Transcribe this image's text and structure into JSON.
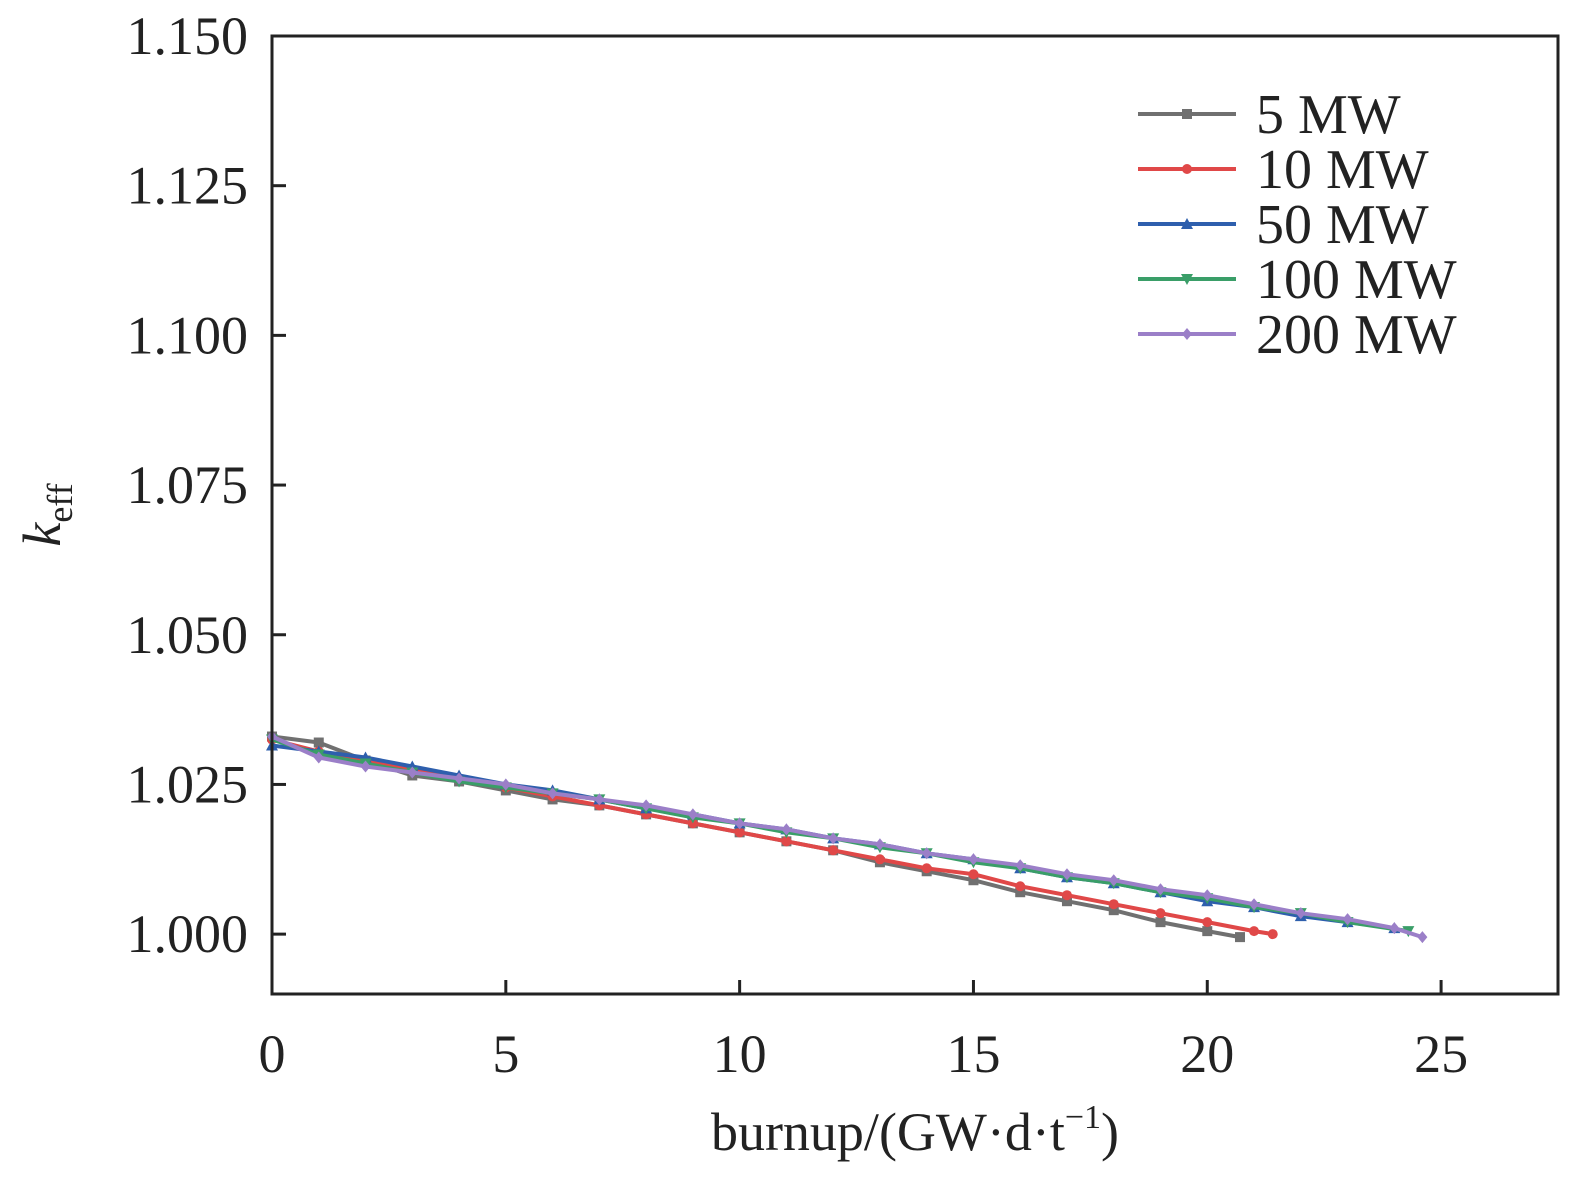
{
  "chart_data": {
    "type": "line",
    "title": "",
    "xlabel": {
      "main": "burnup/(GW·d·t",
      "sup": "−1",
      "close": ")"
    },
    "ylabel": {
      "main": "k",
      "sub": "eff"
    },
    "xlim": [
      0,
      27.5
    ],
    "ylim": [
      0.99,
      1.15
    ],
    "x_ticks": [
      0,
      5,
      10,
      15,
      20,
      25
    ],
    "x_tick_labels": [
      "0",
      "5",
      "10",
      "15",
      "20",
      "25"
    ],
    "y_ticks": [
      1.0,
      1.025,
      1.05,
      1.075,
      1.1,
      1.125,
      1.15
    ],
    "y_tick_labels": [
      "1.000",
      "1.025",
      "1.050",
      "1.075",
      "1.100",
      "1.125",
      "1.150"
    ],
    "grid": false,
    "legend_position": "top-right",
    "series": [
      {
        "name": "5 MW",
        "color": "#707070",
        "marker": "square",
        "x": [
          0,
          1,
          2,
          3,
          4,
          5,
          6,
          7,
          8,
          9,
          10,
          11,
          12,
          13,
          14,
          15,
          16,
          17,
          18,
          19,
          20,
          20.7
        ],
        "y": [
          1.033,
          1.032,
          1.029,
          1.0265,
          1.0255,
          1.024,
          1.0225,
          1.0215,
          1.02,
          1.0185,
          1.017,
          1.0155,
          1.014,
          1.012,
          1.0105,
          1.009,
          1.007,
          1.0055,
          1.004,
          1.002,
          1.0005,
          0.9995
        ]
      },
      {
        "name": "10 MW",
        "color": "#e04848",
        "marker": "circle",
        "x": [
          0,
          1,
          2,
          3,
          4,
          5,
          6,
          7,
          8,
          9,
          10,
          11,
          12,
          13,
          14,
          15,
          16,
          17,
          18,
          19,
          20,
          21,
          21.4
        ],
        "y": [
          1.0325,
          1.0305,
          1.029,
          1.0275,
          1.026,
          1.0245,
          1.023,
          1.0215,
          1.02,
          1.0185,
          1.017,
          1.0155,
          1.014,
          1.0125,
          1.011,
          1.01,
          1.008,
          1.0065,
          1.005,
          1.0035,
          1.002,
          1.0005,
          1.0
        ]
      },
      {
        "name": "50 MW",
        "color": "#2e5fad",
        "marker": "triangle-up",
        "x": [
          0,
          1,
          2,
          3,
          4,
          5,
          6,
          7,
          8,
          9,
          10,
          11,
          12,
          13,
          14,
          15,
          16,
          17,
          18,
          19,
          20,
          21,
          22,
          23,
          24
        ],
        "y": [
          1.0315,
          1.0305,
          1.0295,
          1.028,
          1.0265,
          1.025,
          1.024,
          1.0225,
          1.021,
          1.02,
          1.0185,
          1.0175,
          1.016,
          1.015,
          1.0135,
          1.0125,
          1.011,
          1.0095,
          1.0085,
          1.007,
          1.0055,
          1.0045,
          1.003,
          1.002,
          1.001
        ]
      },
      {
        "name": "100 MW",
        "color": "#3a9e68",
        "marker": "triangle-down",
        "x": [
          0,
          1,
          2,
          3,
          4,
          5,
          6,
          7,
          8,
          9,
          10,
          11,
          12,
          13,
          14,
          15,
          16,
          17,
          18,
          19,
          20,
          21,
          22,
          23,
          24.3
        ],
        "y": [
          1.0325,
          1.03,
          1.0285,
          1.027,
          1.0255,
          1.0245,
          1.0235,
          1.0225,
          1.021,
          1.0195,
          1.0185,
          1.017,
          1.016,
          1.0145,
          1.0135,
          1.012,
          1.011,
          1.0095,
          1.0085,
          1.007,
          1.006,
          1.0045,
          1.0035,
          1.002,
          1.0005
        ]
      },
      {
        "name": "200 MW",
        "color": "#9b7fc8",
        "marker": "diamond",
        "x": [
          0,
          1,
          2,
          3,
          4,
          5,
          6,
          7,
          8,
          9,
          10,
          11,
          12,
          13,
          14,
          15,
          16,
          17,
          18,
          19,
          20,
          21,
          22,
          23,
          24,
          24.6
        ],
        "y": [
          1.033,
          1.0295,
          1.028,
          1.027,
          1.026,
          1.025,
          1.0235,
          1.0225,
          1.0215,
          1.02,
          1.0185,
          1.0175,
          1.016,
          1.015,
          1.0135,
          1.0125,
          1.0115,
          1.01,
          1.009,
          1.0075,
          1.0065,
          1.005,
          1.0035,
          1.0025,
          1.001,
          0.9995
        ]
      }
    ]
  }
}
